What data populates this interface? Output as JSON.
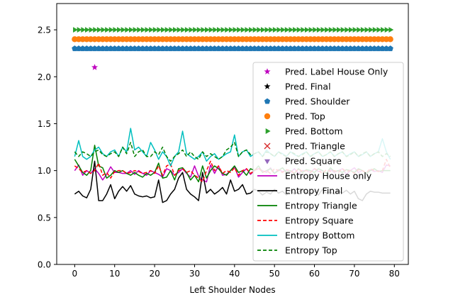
{
  "chart_data": {
    "type": "line",
    "title": "",
    "xlabel": "Left Shoulder Nodes",
    "ylabel": "",
    "xlim": [
      -4.5,
      83.5
    ],
    "ylim": [
      0.0,
      2.78
    ],
    "xticks": [
      0,
      10,
      20,
      30,
      40,
      50,
      60,
      70,
      80
    ],
    "yticks": [
      0.0,
      0.5,
      1.0,
      1.5,
      2.0,
      2.5
    ],
    "ytick_labels": [
      "0.0",
      "0.5",
      "1.0",
      "1.5",
      "2.0",
      "2.5"
    ],
    "grid": false,
    "legend_position": "right",
    "series": [
      {
        "name": "Pred. Label House Only",
        "kind": "marker",
        "marker": "star",
        "color": "#bf00bf",
        "x": [
          5
        ],
        "y": [
          2.1
        ]
      },
      {
        "name": "Pred. Final",
        "kind": "marker",
        "marker": "star",
        "color": "#000000",
        "x": [],
        "y": []
      },
      {
        "name": "Pred. Shoulder",
        "kind": "marker",
        "marker": "pentagon",
        "color": "#1f77b4",
        "x_range": [
          0,
          79
        ],
        "constant_y": 2.3
      },
      {
        "name": "Pred. Top",
        "kind": "marker",
        "marker": "circle",
        "color": "#ff7f0e",
        "x_range": [
          0,
          79
        ],
        "constant_y": 2.4
      },
      {
        "name": "Pred. Bottom",
        "kind": "marker",
        "marker": "triangle-right",
        "color": "#2ca02c",
        "x_range": [
          0,
          79
        ],
        "constant_y": 2.5
      },
      {
        "name": "Pred. Triangle",
        "kind": "marker",
        "marker": "x",
        "color": "#d62728",
        "x": [],
        "y": []
      },
      {
        "name": "Pred. Square",
        "kind": "marker",
        "marker": "triangle-down",
        "color": "#9467bd",
        "x": [],
        "y": []
      },
      {
        "name": "Entropy House only",
        "kind": "line",
        "dash": "solid",
        "color": "#bf00bf",
        "y": [
          1.0,
          1.06,
          0.95,
          1.0,
          0.97,
          1.02,
          0.97,
          0.9,
          0.96,
          1.04,
          0.98,
          0.98,
          0.97,
          0.97,
          1.0,
          0.96,
          1.0,
          0.97,
          0.95,
          1.0,
          0.98,
          0.96,
          0.93,
          1.02,
          1.0,
          0.95,
          0.98,
          1.02,
          0.97,
          0.93,
          1.05,
          0.94,
          0.9,
          0.88,
          1.06,
          0.97,
          1.05,
          0.95,
          0.96,
          1.0,
          1.04,
          0.93,
          0.98,
          1.02,
          0.96,
          1.0,
          1.02,
          1.0,
          0.98,
          1.03,
          0.97,
          1.01,
          0.99,
          1.0,
          0.98,
          1.02,
          0.97,
          1.0,
          1.0,
          0.98,
          1.02,
          0.99,
          1.0,
          0.97,
          1.01,
          0.98,
          1.0,
          1.02,
          0.96,
          1.0,
          1.03,
          0.98,
          1.0,
          0.97,
          1.01,
          0.99,
          1.0,
          0.98,
          1.06,
          1.05
        ]
      },
      {
        "name": "Entropy Final",
        "kind": "line",
        "dash": "solid",
        "color": "#000000",
        "y": [
          0.75,
          0.78,
          0.73,
          0.71,
          0.8,
          1.1,
          0.68,
          0.68,
          0.75,
          0.85,
          0.7,
          0.78,
          0.83,
          0.78,
          0.84,
          0.75,
          0.73,
          0.72,
          0.73,
          0.71,
          0.72,
          0.9,
          0.66,
          0.68,
          0.75,
          0.8,
          0.92,
          0.98,
          0.8,
          0.75,
          0.72,
          0.68,
          0.98,
          0.76,
          0.8,
          0.75,
          0.78,
          0.82,
          0.75,
          0.9,
          0.78,
          0.8,
          0.85,
          0.75,
          0.76,
          0.8,
          0.78,
          0.74,
          0.77,
          0.75,
          0.8,
          0.76,
          0.78,
          0.74,
          0.79,
          0.75,
          0.77,
          0.8,
          0.76,
          0.75,
          0.78,
          0.74,
          0.8,
          0.76,
          0.77,
          0.75,
          0.78,
          0.76,
          0.79,
          0.75,
          0.78,
          0.7,
          0.68,
          0.75,
          0.78,
          0.77,
          0.77,
          0.76,
          0.76,
          0.76
        ]
      },
      {
        "name": "Entropy Triangle",
        "kind": "line",
        "dash": "solid",
        "color": "#008000",
        "y": [
          1.12,
          1.05,
          0.98,
          0.95,
          1.0,
          1.27,
          1.05,
          1.03,
          0.92,
          0.95,
          1.0,
          0.98,
          1.0,
          0.97,
          0.95,
          0.98,
          0.95,
          0.93,
          0.97,
          0.95,
          0.98,
          1.08,
          0.92,
          0.93,
          1.0,
          0.9,
          1.02,
          1.03,
          0.98,
          0.9,
          0.95,
          0.88,
          1.05,
          0.92,
          1.0,
          1.05,
          1.02,
          0.97,
          0.95,
          1.0,
          1.05,
          0.98,
          1.0,
          0.95,
          1.02,
          1.0,
          1.05,
          0.98,
          1.0,
          1.02,
          0.97,
          1.0,
          1.03,
          0.98,
          1.0,
          0.97,
          1.02,
          0.98,
          1.01,
          1.0,
          0.98,
          1.02,
          1.0,
          0.97,
          1.03,
          0.99,
          1.0,
          0.98,
          1.01,
          1.0,
          0.98,
          1.02,
          1.0,
          0.97,
          1.0,
          1.02,
          0.99,
          1.0,
          1.0,
          1.0
        ]
      },
      {
        "name": "Entropy Square",
        "kind": "line",
        "dash": "dashed",
        "color": "#ff0000",
        "y": [
          1.05,
          1.02,
          0.98,
          1.0,
          0.97,
          1.0,
          1.08,
          0.95,
          0.98,
          0.92,
          0.99,
          1.0,
          1.0,
          0.97,
          0.98,
          1.0,
          0.99,
          0.97,
          0.98,
          1.0,
          0.97,
          1.05,
          0.95,
          1.05,
          1.07,
          0.95,
          1.0,
          1.02,
          0.98,
          1.0,
          0.95,
          0.92,
          0.88,
          1.0,
          1.1,
          1.0,
          1.05,
          0.97,
          1.0,
          0.98,
          1.03,
          0.95,
          1.0,
          1.02,
          0.97,
          1.0,
          1.03,
          0.98,
          1.0,
          0.97,
          1.02,
          1.0,
          0.98,
          1.01,
          1.0,
          0.97,
          1.02,
          0.99,
          1.0,
          0.98,
          1.02,
          1.0,
          0.97,
          1.01,
          0.99,
          1.0,
          0.98,
          1.02,
          0.99,
          1.0,
          0.97,
          1.01,
          1.0,
          0.98,
          1.02,
          1.0,
          0.99,
          1.0,
          1.12,
          1.03
        ]
      },
      {
        "name": "Entropy Bottom",
        "kind": "line",
        "dash": "solid",
        "color": "#00bfbf",
        "y": [
          1.15,
          1.32,
          1.15,
          1.12,
          1.15,
          1.22,
          1.25,
          1.18,
          1.15,
          1.2,
          1.22,
          1.15,
          1.25,
          1.2,
          1.45,
          1.22,
          1.25,
          1.2,
          1.15,
          1.3,
          1.22,
          1.12,
          1.2,
          1.15,
          1.05,
          1.15,
          1.2,
          1.42,
          1.18,
          1.15,
          1.12,
          1.15,
          1.2,
          1.1,
          1.15,
          1.18,
          1.12,
          1.15,
          1.18,
          1.2,
          1.38,
          1.15,
          1.2,
          1.22,
          1.15,
          1.18,
          1.2,
          1.15,
          1.22,
          1.18,
          1.15,
          1.2,
          1.18,
          1.15,
          1.2,
          1.17,
          1.15,
          1.18,
          1.2,
          1.15,
          1.18,
          1.2,
          1.15,
          1.17,
          1.2,
          1.15,
          1.18,
          1.2,
          1.15,
          1.18,
          1.2,
          1.15,
          1.17,
          1.2,
          1.15,
          1.18,
          1.2,
          1.34,
          1.2,
          1.12
        ]
      },
      {
        "name": "Entropy Top",
        "kind": "line",
        "dash": "dashed",
        "color": "#008000",
        "y": [
          1.2,
          1.15,
          1.2,
          1.18,
          1.15,
          1.2,
          1.22,
          1.17,
          1.15,
          1.18,
          1.2,
          1.15,
          1.25,
          1.18,
          1.3,
          1.15,
          1.2,
          1.22,
          1.15,
          1.15,
          1.2,
          1.17,
          1.25,
          1.15,
          1.1,
          1.15,
          1.18,
          1.22,
          1.15,
          1.2,
          1.15,
          1.12,
          1.2,
          1.15,
          1.18,
          1.15,
          1.12,
          1.15,
          1.22,
          1.25,
          1.3,
          1.15,
          1.2,
          1.22,
          1.17,
          1.18,
          1.2,
          1.15,
          1.2,
          1.18,
          1.15,
          1.2,
          1.17,
          1.15,
          1.2,
          1.18,
          1.15,
          1.17,
          1.2,
          1.15,
          1.18,
          1.2,
          1.15,
          1.17,
          1.2,
          1.15,
          1.18,
          1.2,
          1.15,
          1.17,
          1.2,
          1.15,
          1.18,
          1.2,
          1.15,
          1.18,
          1.2,
          1.15,
          1.18,
          1.15
        ]
      }
    ]
  }
}
